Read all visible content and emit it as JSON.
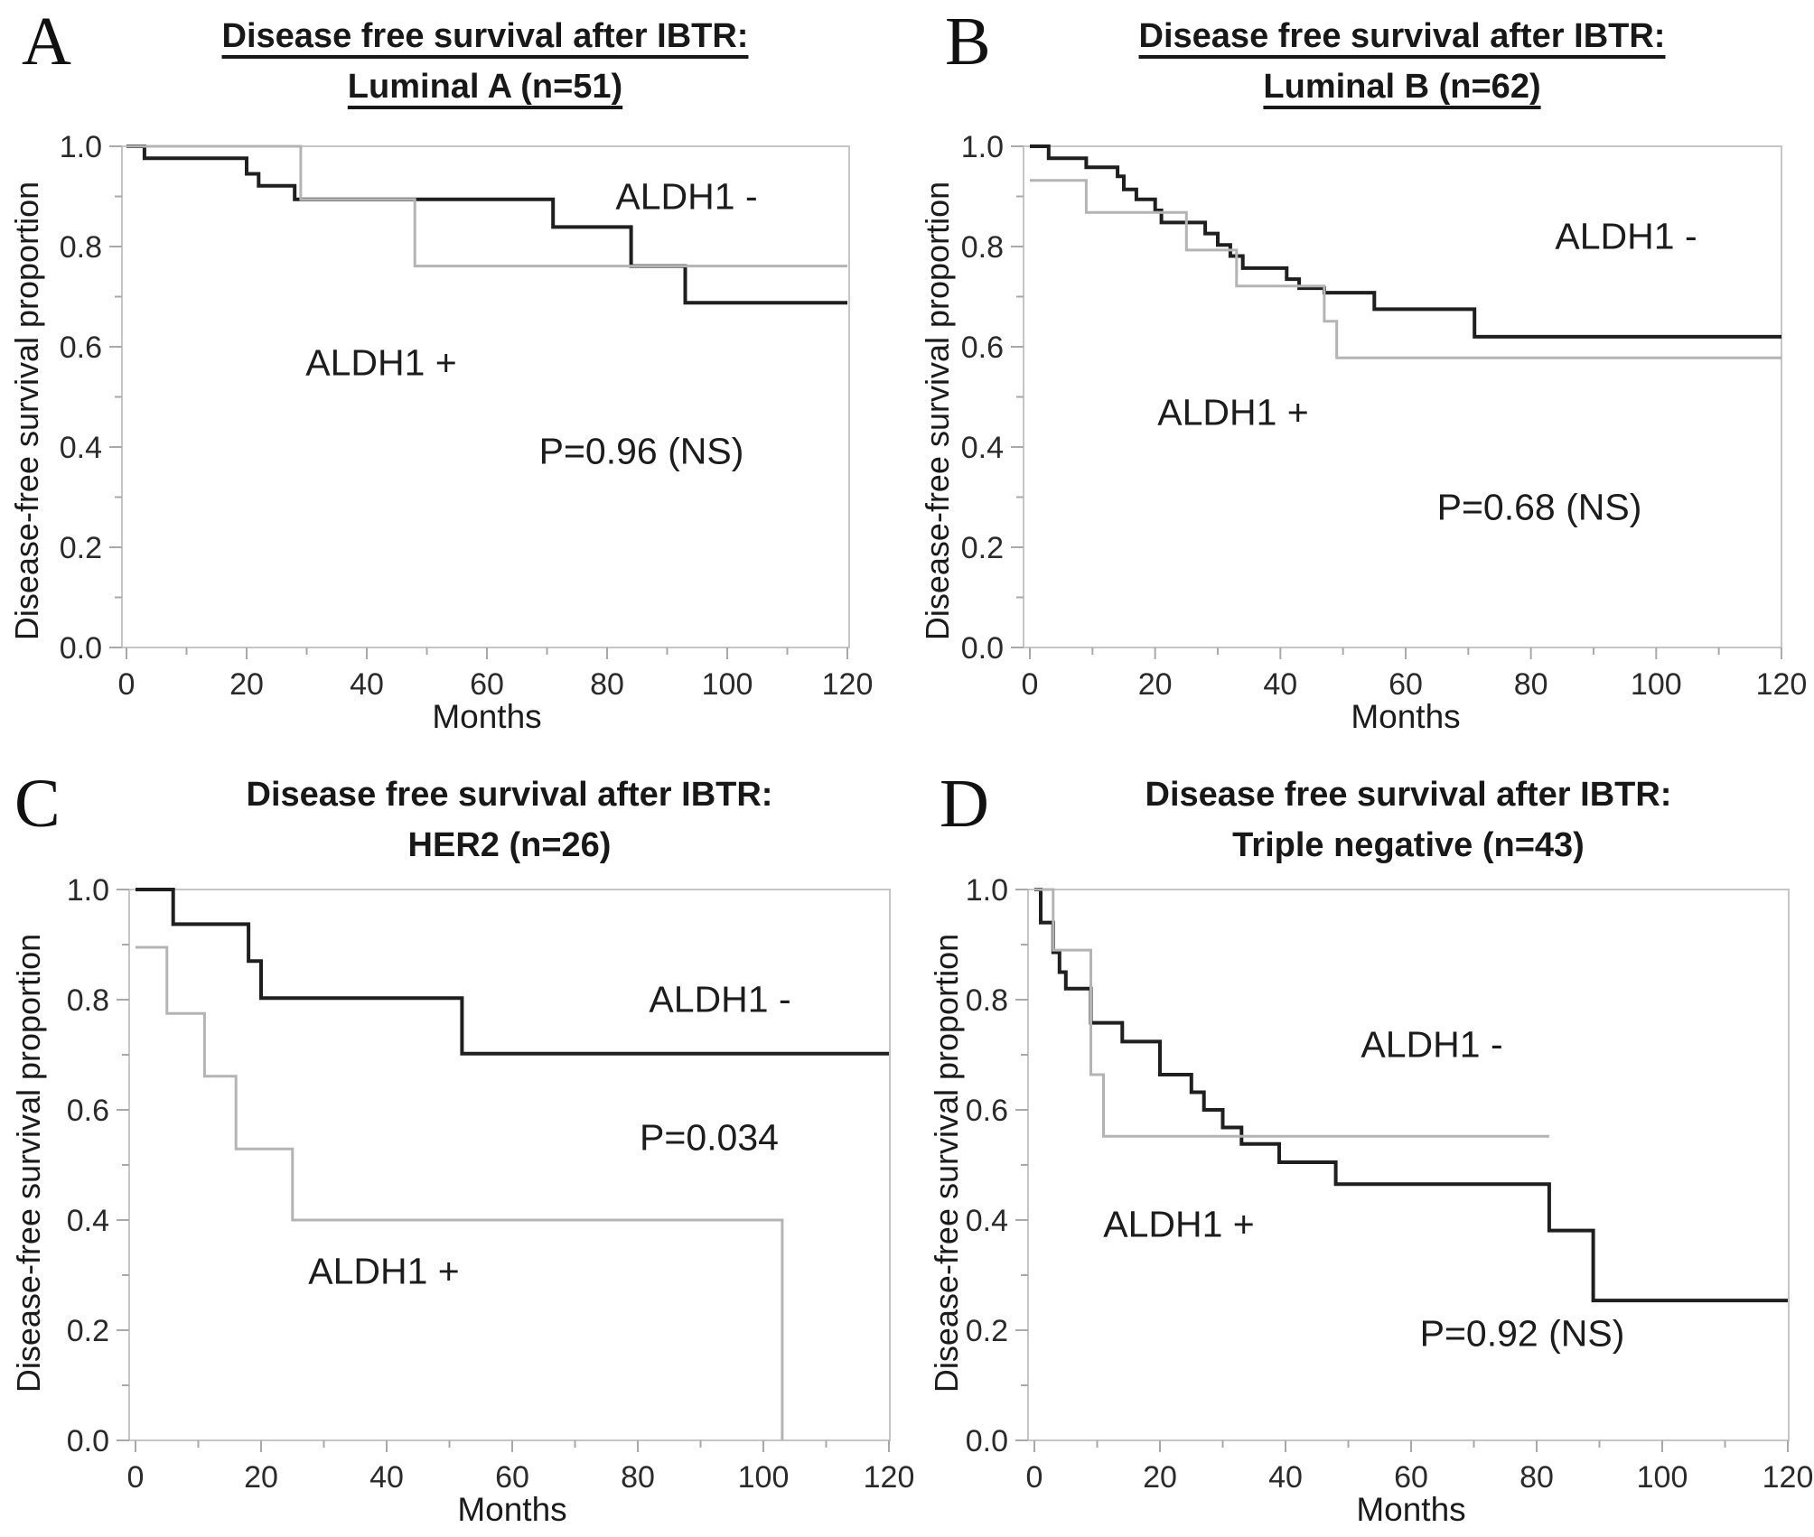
{
  "figure": {
    "kind": "kaplan-meier-survival-figure",
    "background": "#ffffff",
    "axis_frame_color": "#c6c6c6",
    "tick_color": "#a9a9a9",
    "text_color": "#1b1b1b"
  },
  "chart_data": [
    {
      "type": "line",
      "style": "kaplan-meier-step",
      "letter": "A",
      "title": "Disease free survival after IBTR: Luminal A (n=51)",
      "title_line1": "Disease free survival after IBTR:",
      "title_line2": "Luminal A (n=51)",
      "title_underlined": true,
      "xlabel": "Months",
      "ylabel": "Disease-free survival proportion",
      "p_label": "P=0.96 (NS)",
      "xlim": [
        0,
        120
      ],
      "ylim": [
        0.0,
        1.0
      ],
      "xticks": [
        0,
        20,
        40,
        60,
        80,
        100,
        120
      ],
      "xtick_labels": [
        "0",
        "20",
        "40",
        "60",
        "80",
        "100",
        "120"
      ],
      "yticks": [
        0.0,
        0.2,
        0.4,
        0.6,
        0.8,
        1.0
      ],
      "ytick_labels": [
        "0.0",
        "0.2",
        "0.4",
        "0.6",
        "0.8",
        "1.0"
      ],
      "grid": false,
      "legend_position": "in-plot-text-labels",
      "series": [
        {
          "name": "ALDH1 -",
          "role": "aldh1-negative",
          "color": "#1f1f1f",
          "step_times": [
            0,
            3,
            20,
            22,
            28,
            71,
            84,
            93
          ],
          "step_values": [
            1.0,
            0.976,
            0.945,
            0.921,
            0.894,
            0.839,
            0.761,
            0.688
          ],
          "end_time": 120
        },
        {
          "name": "ALDH1 +",
          "role": "aldh1-positive",
          "color": "#b4b4b4",
          "step_times": [
            0,
            29,
            48
          ],
          "step_values": [
            1.0,
            0.894,
            0.761
          ],
          "end_time": 120
        }
      ]
    },
    {
      "type": "line",
      "style": "kaplan-meier-step",
      "letter": "B",
      "title": "Disease free survival after IBTR: Luminal B (n=62)",
      "title_line1": "Disease free survival after IBTR:",
      "title_line2": "Luminal B (n=62)",
      "title_underlined": true,
      "xlabel": "Months",
      "ylabel": "Disease-free survival proportion",
      "p_label": "P=0.68 (NS)",
      "xlim": [
        0,
        120
      ],
      "ylim": [
        0.0,
        1.0
      ],
      "xticks": [
        0,
        20,
        40,
        60,
        80,
        100,
        120
      ],
      "xtick_labels": [
        "0",
        "20",
        "40",
        "60",
        "80",
        "100",
        "120"
      ],
      "yticks": [
        0.0,
        0.2,
        0.4,
        0.6,
        0.8,
        1.0
      ],
      "ytick_labels": [
        "0.0",
        "0.2",
        "0.4",
        "0.6",
        "0.8",
        "1.0"
      ],
      "grid": false,
      "legend_position": "in-plot-text-labels",
      "series": [
        {
          "name": "ALDH1 -",
          "role": "aldh1-negative",
          "color": "#1f1f1f",
          "step_times": [
            0,
            3,
            9,
            14,
            15,
            17,
            20,
            21,
            28,
            30,
            32,
            34,
            41,
            43,
            47,
            55,
            71
          ],
          "step_values": [
            1.0,
            0.976,
            0.958,
            0.94,
            0.914,
            0.894,
            0.872,
            0.848,
            0.826,
            0.803,
            0.781,
            0.757,
            0.735,
            0.717,
            0.708,
            0.675,
            0.62
          ],
          "end_time": 120
        },
        {
          "name": "ALDH1 +",
          "role": "aldh1-positive",
          "color": "#b4b4b4",
          "step_times": [
            0,
            9,
            25,
            33,
            47,
            49
          ],
          "step_values": [
            0.932,
            0.868,
            0.793,
            0.721,
            0.651,
            0.578
          ],
          "end_time": 120
        }
      ]
    },
    {
      "type": "line",
      "style": "kaplan-meier-step",
      "letter": "C",
      "title": "Disease free survival after IBTR: HER2 (n=26)",
      "title_line1": "Disease free survival after IBTR:",
      "title_line2": "HER2 (n=26)",
      "title_underlined": false,
      "xlabel": "Months",
      "ylabel": "Disease-free survival proportion",
      "p_label": "P=0.034",
      "xlim": [
        0,
        120
      ],
      "ylim": [
        0.0,
        1.0
      ],
      "xticks": [
        0,
        20,
        40,
        60,
        80,
        100,
        120
      ],
      "xtick_labels": [
        "0",
        "20",
        "40",
        "60",
        "80",
        "100",
        "120"
      ],
      "yticks": [
        0.0,
        0.2,
        0.4,
        0.6,
        0.8,
        1.0
      ],
      "ytick_labels": [
        "0.0",
        "0.2",
        "0.4",
        "0.6",
        "0.8",
        "1.0"
      ],
      "grid": false,
      "legend_position": "in-plot-text-labels",
      "series": [
        {
          "name": "ALDH1 -",
          "role": "aldh1-negative",
          "color": "#1f1f1f",
          "step_times": [
            0,
            6,
            18,
            20,
            52
          ],
          "step_values": [
            1.0,
            0.937,
            0.87,
            0.803,
            0.702
          ],
          "end_time": 120
        },
        {
          "name": "ALDH1 +",
          "role": "aldh1-positive",
          "color": "#b4b4b4",
          "step_times": [
            0,
            5,
            11,
            16,
            25,
            103
          ],
          "step_values": [
            0.895,
            0.775,
            0.661,
            0.529,
            0.4,
            0.0
          ],
          "end_time": 103
        }
      ]
    },
    {
      "type": "line",
      "style": "kaplan-meier-step",
      "letter": "D",
      "title": "Disease free survival after IBTR: Triple negative (n=43)",
      "title_line1": "Disease free survival after IBTR:",
      "title_line2": "Triple negative (n=43)",
      "title_underlined": false,
      "xlabel": "Months",
      "ylabel": "Disease-free survival proportion",
      "p_label": "P=0.92 (NS)",
      "xlim": [
        0,
        120
      ],
      "ylim": [
        0.0,
        1.0
      ],
      "xticks": [
        0,
        20,
        40,
        60,
        80,
        100,
        120
      ],
      "xtick_labels": [
        "0",
        "20",
        "40",
        "60",
        "80",
        "100",
        "120"
      ],
      "yticks": [
        0.0,
        0.2,
        0.4,
        0.6,
        0.8,
        1.0
      ],
      "ytick_labels": [
        "0.0",
        "0.2",
        "0.4",
        "0.6",
        "0.8",
        "1.0"
      ],
      "grid": false,
      "legend_position": "in-plot-text-labels",
      "series": [
        {
          "name": "ALDH1 -",
          "role": "aldh1-negative",
          "color": "#1f1f1f",
          "step_times": [
            0,
            1,
            3,
            4,
            5,
            9,
            14,
            20,
            25,
            27,
            30,
            33,
            39,
            48,
            82,
            89
          ],
          "step_values": [
            1.0,
            0.94,
            0.886,
            0.85,
            0.82,
            0.758,
            0.724,
            0.664,
            0.632,
            0.6,
            0.568,
            0.538,
            0.505,
            0.465,
            0.381,
            0.254
          ],
          "end_time": 120
        },
        {
          "name": "ALDH1 +",
          "role": "aldh1-positive",
          "color": "#b4b4b4",
          "step_times": [
            0,
            3,
            9,
            11
          ],
          "step_values": [
            1.0,
            0.89,
            0.664,
            0.552
          ],
          "end_time": 82
        }
      ]
    }
  ]
}
